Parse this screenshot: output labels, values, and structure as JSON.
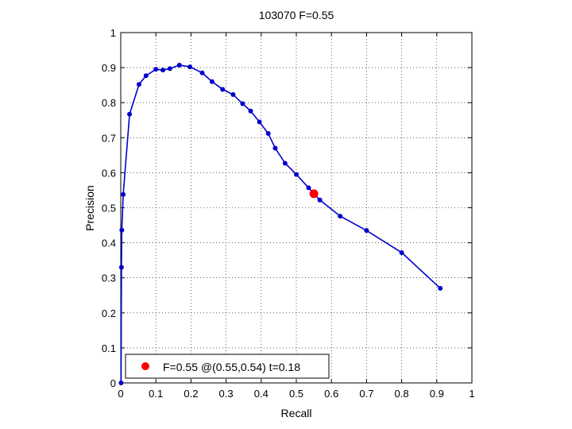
{
  "chart_data": {
    "type": "line",
    "title": "103070 F=0.55",
    "xlabel": "Recall",
    "ylabel": "Precision",
    "xlim": [
      0,
      1
    ],
    "ylim": [
      0,
      1
    ],
    "xticks": [
      "0",
      "0.1",
      "0.2",
      "0.3",
      "0.4",
      "0.5",
      "0.6",
      "0.7",
      "0.8",
      "0.9",
      "1"
    ],
    "yticks": [
      "0",
      "0.1",
      "0.2",
      "0.3",
      "0.4",
      "0.5",
      "0.6",
      "0.7",
      "0.8",
      "0.9",
      "1"
    ],
    "grid": true,
    "line_color": "#0000cc",
    "highlight_color": "#ff0000",
    "series": [
      {
        "x": [
          0.91,
          0.8,
          0.7,
          0.625,
          0.567,
          0.535,
          0.5,
          0.468,
          0.44,
          0.42,
          0.395,
          0.37,
          0.347,
          0.32,
          0.29,
          0.26,
          0.232,
          0.197,
          0.167,
          0.14,
          0.12,
          0.1,
          0.072,
          0.052,
          0.025,
          0.007,
          0.003,
          0.002,
          0.001
        ],
        "y": [
          0.27,
          0.372,
          0.435,
          0.476,
          0.522,
          0.557,
          0.595,
          0.627,
          0.67,
          0.712,
          0.745,
          0.776,
          0.797,
          0.823,
          0.838,
          0.86,
          0.885,
          0.902,
          0.907,
          0.897,
          0.893,
          0.895,
          0.877,
          0.852,
          0.767,
          0.538,
          0.436,
          0.33,
          0.0
        ]
      }
    ],
    "highlight": {
      "x": 0.55,
      "y": 0.54
    },
    "legend": {
      "label": "F=0.55 @(0.55,0.54) t=0.18",
      "position": "bottom-left"
    }
  }
}
